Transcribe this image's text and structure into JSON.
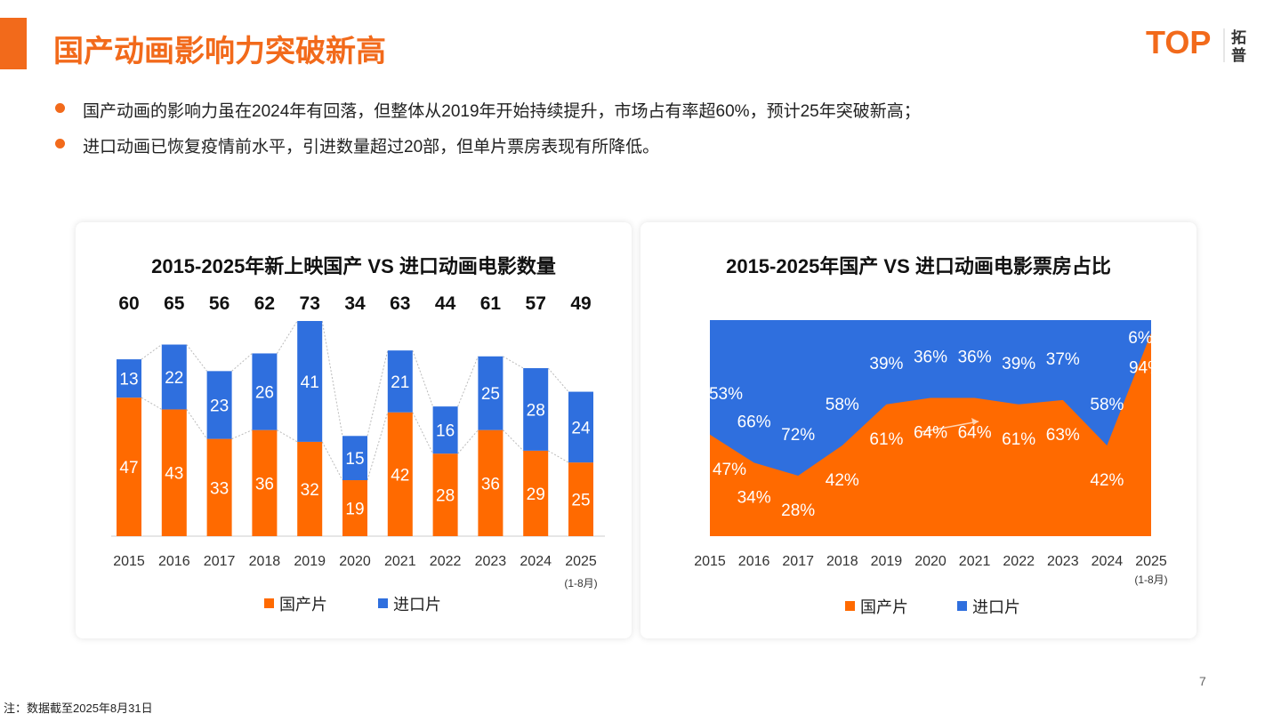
{
  "header": {
    "title": "国产动画影响力突破新高",
    "logo_text": "TOP",
    "logo_cn": "拓普"
  },
  "bullets": [
    "国产动画的影响力虽在2024年有回落，但整体从2019年开始持续提升，市场占有率超60%，预计25年突破新高；",
    "进口动画已恢复疫情前水平，引进数量超过20部，但单片票房表现有所降低。"
  ],
  "colors": {
    "domestic": "#ff6a00",
    "imported": "#2f6fde",
    "accent": "#f26a1b"
  },
  "chart_data": [
    {
      "type": "bar",
      "stacked": true,
      "title": "2015-2025年新上映国产 VS 进口动画电影数量",
      "categories": [
        "2015",
        "2016",
        "2017",
        "2018",
        "2019",
        "2020",
        "2021",
        "2022",
        "2023",
        "2024",
        "2025"
      ],
      "category_note": "(1-8月)",
      "totals": [
        60,
        65,
        56,
        62,
        73,
        34,
        63,
        44,
        61,
        57,
        49
      ],
      "series": [
        {
          "name": "国产片",
          "values": [
            47,
            43,
            33,
            36,
            32,
            19,
            42,
            28,
            36,
            29,
            25
          ]
        },
        {
          "name": "进口片",
          "values": [
            13,
            22,
            23,
            26,
            41,
            15,
            21,
            16,
            25,
            28,
            24
          ]
        }
      ],
      "legend": "bottom"
    },
    {
      "type": "area",
      "stacked": true,
      "percent": true,
      "title": "2015-2025年国产 VS 进口动画电影票房占比",
      "categories": [
        "2015",
        "2016",
        "2017",
        "2018",
        "2019",
        "2020",
        "2021",
        "2022",
        "2023",
        "2024",
        "2025"
      ],
      "category_note": "(1-8月)",
      "series": [
        {
          "name": "国产片",
          "values": [
            47,
            34,
            28,
            42,
            61,
            64,
            64,
            61,
            63,
            42,
            94
          ]
        },
        {
          "name": "进口片",
          "values": [
            53,
            66,
            72,
            58,
            39,
            36,
            36,
            39,
            37,
            58,
            6
          ]
        }
      ],
      "legend": "bottom"
    }
  ],
  "footer": {
    "note": "注：数据截至2025年8月31日",
    "page": "7"
  }
}
